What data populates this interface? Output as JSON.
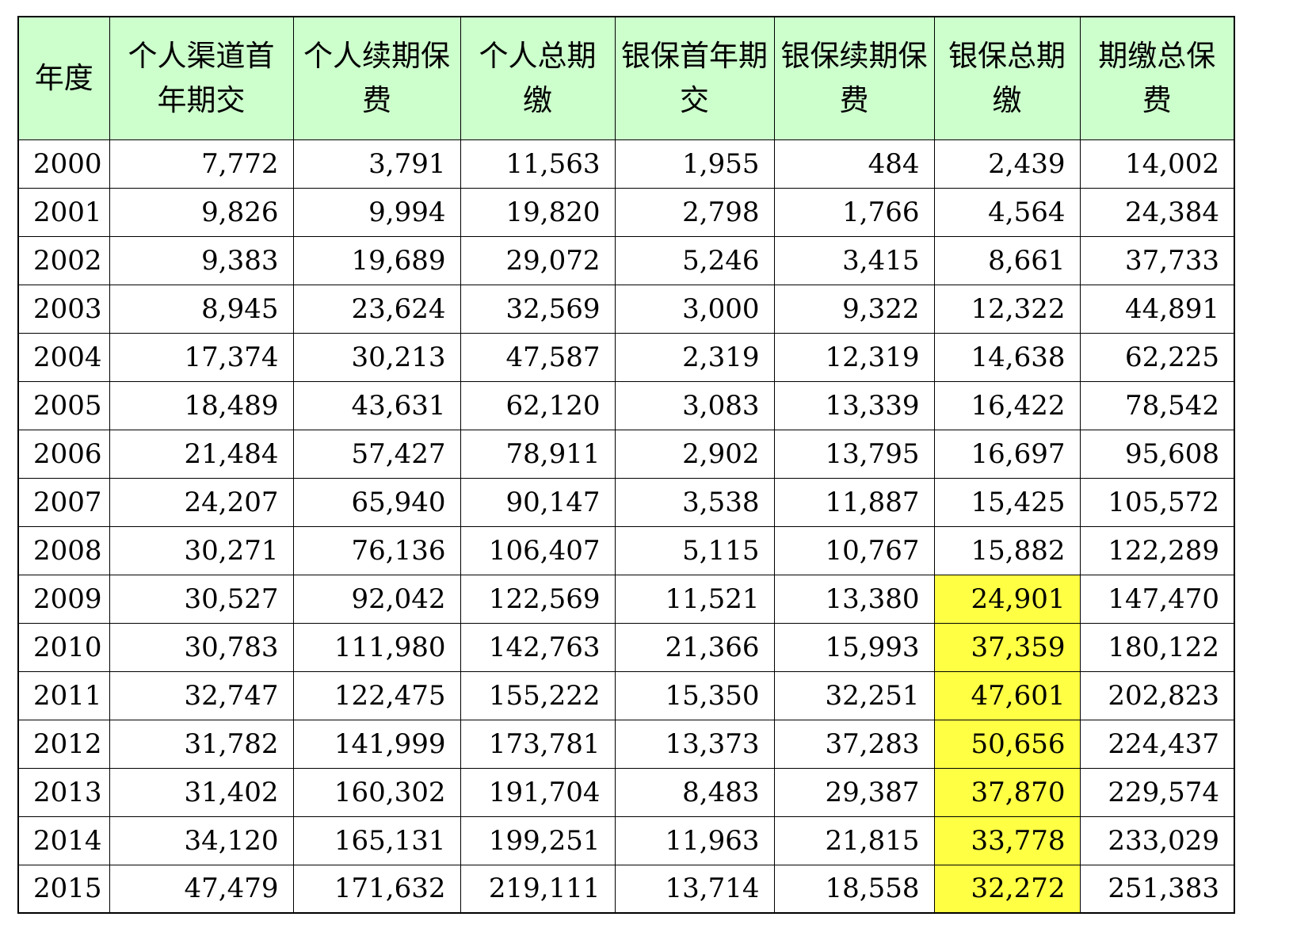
{
  "table": {
    "headers": [
      "年度",
      "个人渠道首年期交",
      "个人续期保费",
      "个人总期缴",
      "银保首年期交",
      "银保续期保费",
      "银保总期缴",
      "期缴总保费"
    ],
    "highlight_color": "#ffff44",
    "header_color": "#ccffcc",
    "rows": [
      {
        "cells": [
          "2000",
          "7,772",
          "3,791",
          "11,563",
          "1,955",
          "484",
          "2,439",
          "14,002"
        ],
        "highlight": false
      },
      {
        "cells": [
          "2001",
          "9,826",
          "9,994",
          "19,820",
          "2,798",
          "1,766",
          "4,564",
          "24,384"
        ],
        "highlight": false
      },
      {
        "cells": [
          "2002",
          "9,383",
          "19,689",
          "29,072",
          "5,246",
          "3,415",
          "8,661",
          "37,733"
        ],
        "highlight": false
      },
      {
        "cells": [
          "2003",
          "8,945",
          "23,624",
          "32,569",
          "3,000",
          "9,322",
          "12,322",
          "44,891"
        ],
        "highlight": false
      },
      {
        "cells": [
          "2004",
          "17,374",
          "30,213",
          "47,587",
          "2,319",
          "12,319",
          "14,638",
          "62,225"
        ],
        "highlight": false
      },
      {
        "cells": [
          "2005",
          "18,489",
          "43,631",
          "62,120",
          "3,083",
          "13,339",
          "16,422",
          "78,542"
        ],
        "highlight": false
      },
      {
        "cells": [
          "2006",
          "21,484",
          "57,427",
          "78,911",
          "2,902",
          "13,795",
          "16,697",
          "95,608"
        ],
        "highlight": false
      },
      {
        "cells": [
          "2007",
          "24,207",
          "65,940",
          "90,147",
          "3,538",
          "11,887",
          "15,425",
          "105,572"
        ],
        "highlight": false
      },
      {
        "cells": [
          "2008",
          "30,271",
          "76,136",
          "106,407",
          "5,115",
          "10,767",
          "15,882",
          "122,289"
        ],
        "highlight": false
      },
      {
        "cells": [
          "2009",
          "30,527",
          "92,042",
          "122,569",
          "11,521",
          "13,380",
          "24,901",
          "147,470"
        ],
        "highlight": true
      },
      {
        "cells": [
          "2010",
          "30,783",
          "111,980",
          "142,763",
          "21,366",
          "15,993",
          "37,359",
          "180,122"
        ],
        "highlight": true
      },
      {
        "cells": [
          "2011",
          "32,747",
          "122,475",
          "155,222",
          "15,350",
          "32,251",
          "47,601",
          "202,823"
        ],
        "highlight": true
      },
      {
        "cells": [
          "2012",
          "31,782",
          "141,999",
          "173,781",
          "13,373",
          "37,283",
          "50,656",
          "224,437"
        ],
        "highlight": true
      },
      {
        "cells": [
          "2013",
          "31,402",
          "160,302",
          "191,704",
          "8,483",
          "29,387",
          "37,870",
          "229,574"
        ],
        "highlight": true
      },
      {
        "cells": [
          "2014",
          "34,120",
          "165,131",
          "199,251",
          "11,963",
          "21,815",
          "33,778",
          "233,029"
        ],
        "highlight": true
      },
      {
        "cells": [
          "2015",
          "47,479",
          "171,632",
          "219,111",
          "13,714",
          "18,558",
          "32,272",
          "251,383"
        ],
        "highlight": true
      }
    ]
  }
}
